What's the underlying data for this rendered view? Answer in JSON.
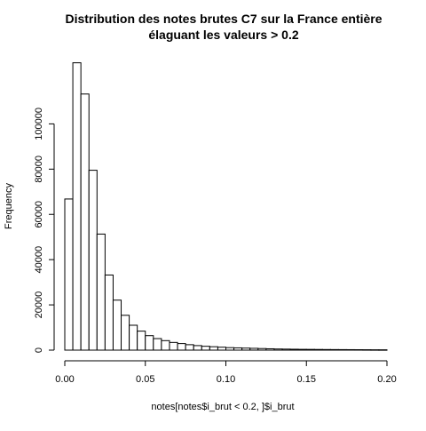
{
  "chart_data": {
    "type": "bar",
    "title_line1": "Distribution des notes brutes C7 sur la France entière",
    "title_line2": "élaguant les valeurs > 0.2",
    "xlabel": "notes[notes$i_brut < 0.2, ]$i_brut",
    "ylabel": "Frequency",
    "xlim": [
      0,
      0.2
    ],
    "ylim": [
      0,
      120000
    ],
    "bin_width": 0.005,
    "x_ticks": [
      "0.00",
      "0.05",
      "0.10",
      "0.15",
      "0.20"
    ],
    "x_tick_values": [
      0,
      0.05,
      0.1,
      0.15,
      0.2
    ],
    "y_ticks": [
      "0",
      "20000",
      "40000",
      "60000",
      "80000",
      "100000"
    ],
    "y_tick_values": [
      0,
      20000,
      40000,
      60000,
      80000,
      100000
    ],
    "bin_starts": [
      0,
      0.005,
      0.01,
      0.015,
      0.02,
      0.025,
      0.03,
      0.035,
      0.04,
      0.045,
      0.05,
      0.055,
      0.06,
      0.065,
      0.07,
      0.075,
      0.08,
      0.085,
      0.09,
      0.095,
      0.1,
      0.105,
      0.11,
      0.115,
      0.12,
      0.125,
      0.13,
      0.135,
      0.14,
      0.145,
      0.15,
      0.155,
      0.16,
      0.165,
      0.17,
      0.175,
      0.18,
      0.185,
      0.19,
      0.195
    ],
    "values": [
      66800,
      127000,
      113200,
      79500,
      51300,
      33200,
      22100,
      15400,
      11000,
      8400,
      6400,
      5100,
      4200,
      3400,
      2900,
      2400,
      2000,
      1700,
      1500,
      1300,
      1100,
      1000,
      900,
      800,
      700,
      600,
      500,
      450,
      400,
      350,
      330,
      300,
      270,
      250,
      230,
      210,
      190,
      170,
      150,
      140
    ],
    "grid": false
  }
}
